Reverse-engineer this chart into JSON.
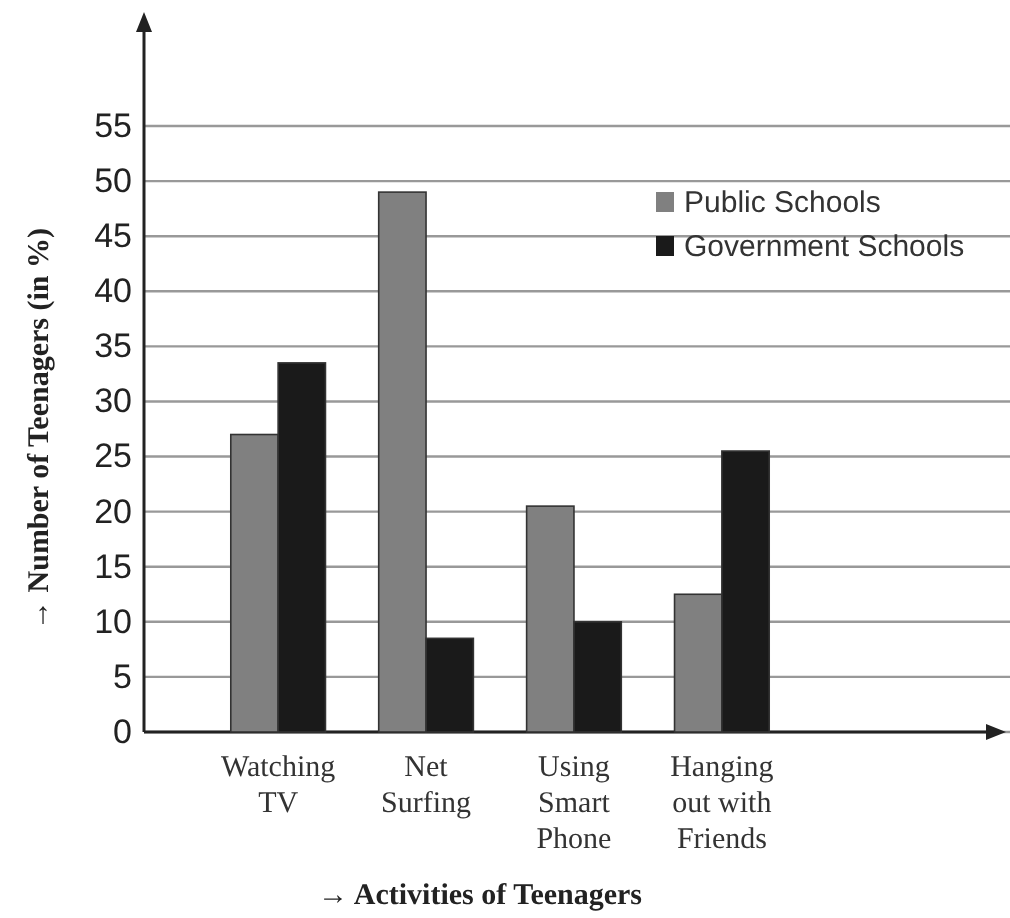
{
  "chart_data": {
    "type": "bar",
    "xlabel": "→ Activities of Teenagers",
    "ylabel": "→ Number of Teenagers (in %)",
    "categories": [
      "Watching TV",
      "Net Surfing",
      "Using Smart Phone",
      "Hanging out with Friends"
    ],
    "series": [
      {
        "name": "Public Schools",
        "color": "#808080",
        "values": [
          27,
          49,
          20.5,
          12.5
        ]
      },
      {
        "name": "Government Schools",
        "color": "#1a1a1a",
        "values": [
          33.5,
          8.5,
          10,
          25.5
        ]
      }
    ],
    "ylim": [
      0,
      55
    ],
    "yticks": [
      0,
      5,
      10,
      15,
      20,
      25,
      30,
      35,
      40,
      45,
      50,
      55
    ],
    "grid": "y",
    "legend": "top right"
  }
}
